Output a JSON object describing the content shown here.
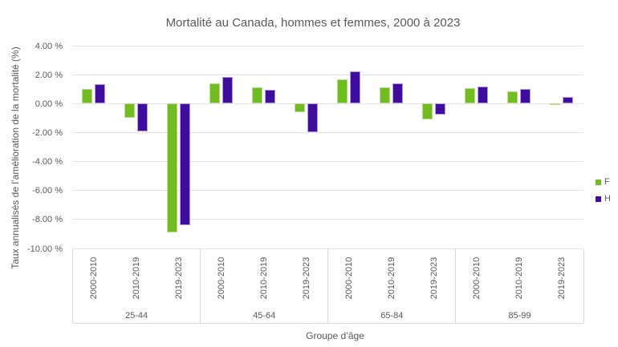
{
  "chart": {
    "title": "Mortalité au Canada, hommes et femmes, 2000 à 2023",
    "y_axis_title": "Taux annualisés de l’amélioration de la mortalité (%)",
    "x_axis_title": "Groupe d’âge"
  },
  "chart_data": {
    "type": "bar",
    "title": "Mortalité au Canada, hommes et femmes, 2000 à 2023",
    "xlabel": "Groupe d’âge",
    "ylabel": "Taux annualisés de l’amélioration de la mortalité (%)",
    "age_groups": [
      "25-44",
      "45-64",
      "65-84",
      "85-99"
    ],
    "periods": [
      "2000-2010",
      "2010-2019",
      "2019-2023"
    ],
    "series": [
      {
        "name": "F",
        "color": "#71bc21",
        "border_color": "#b9dd8f",
        "values": [
          [
            1.0,
            -1.0,
            -8.9
          ],
          [
            1.4,
            1.1,
            -0.6
          ],
          [
            1.65,
            1.1,
            -1.1
          ],
          [
            1.05,
            0.85,
            -0.1
          ]
        ]
      },
      {
        "name": "H",
        "color": "#3d0d9e",
        "border_color": "#bb96e6",
        "values": [
          [
            1.35,
            -1.9,
            -8.4
          ],
          [
            1.85,
            0.95,
            -2.0
          ],
          [
            2.25,
            1.4,
            -0.75
          ],
          [
            1.2,
            1.0,
            0.45
          ]
        ]
      }
    ],
    "y_ticks": [
      {
        "value": 4,
        "label": "4.00 %"
      },
      {
        "value": 2,
        "label": "2.00 %"
      },
      {
        "value": 0,
        "label": "0.00 %"
      },
      {
        "value": -2,
        "label": "-2.00 %"
      },
      {
        "value": -4,
        "label": "-4.00 %"
      },
      {
        "value": -6,
        "label": "-6.00 %"
      },
      {
        "value": -8,
        "label": "-8.00 %"
      },
      {
        "value": -10,
        "label": "-10.00 %"
      }
    ],
    "ylim": [
      -10,
      4
    ],
    "grid": true,
    "legend_position": "right",
    "legend_entries": [
      "F",
      "H"
    ]
  }
}
